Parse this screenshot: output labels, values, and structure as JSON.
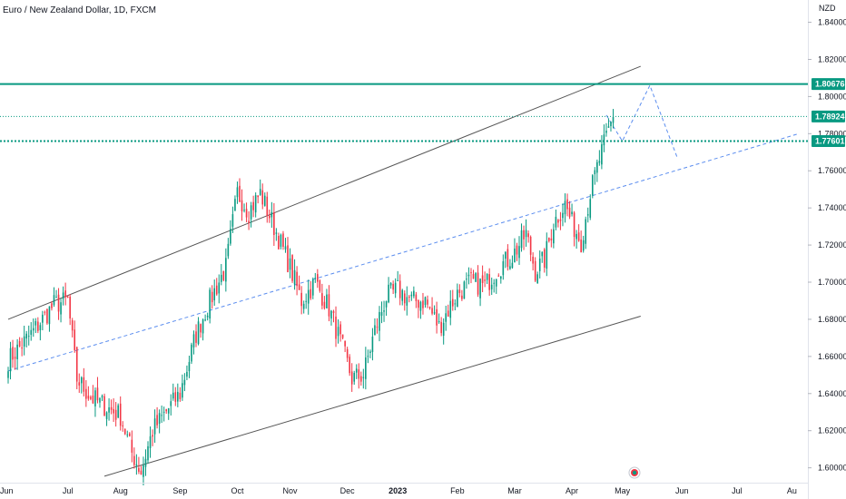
{
  "chart_data": {
    "type": "candlestick",
    "title": "Euro / New Zealand Dollar, 1D, FXCM",
    "currency": "NZD",
    "ylim": [
      1.592,
      1.852
    ],
    "y_ticks": [
      "1.84000",
      "1.82000",
      "1.80000",
      "1.78000",
      "1.76000",
      "1.74000",
      "1.72000",
      "1.70000",
      "1.68000",
      "1.66000",
      "1.64000",
      "1.62000",
      "1.60000"
    ],
    "x_ticks": [
      {
        "label": "Jun",
        "idx": 0
      },
      {
        "label": "Jul",
        "idx": 26
      },
      {
        "label": "Aug",
        "idx": 49
      },
      {
        "label": "Sep",
        "idx": 75
      },
      {
        "label": "Oct",
        "idx": 100
      },
      {
        "label": "Nov",
        "idx": 123
      },
      {
        "label": "Dec",
        "idx": 148
      },
      {
        "label": "2023",
        "idx": 170
      },
      {
        "label": "Feb",
        "idx": 196
      },
      {
        "label": "Mar",
        "idx": 221
      },
      {
        "label": "Apr",
        "idx": 246
      },
      {
        "label": "May",
        "idx": 268
      },
      {
        "label": "Jun",
        "idx": 294
      },
      {
        "label": "Jul",
        "idx": 318
      },
      {
        "label": "Au",
        "idx": 342
      }
    ],
    "x_last_idx": 345,
    "price_levels": [
      {
        "label": "1.80676",
        "value": 1.80676,
        "color": "#089981",
        "style": "solid"
      },
      {
        "label": "1.78924",
        "value": 1.78924,
        "color": "#089981",
        "style": "dotted-thin"
      },
      {
        "label": "1.77601",
        "value": 1.77601,
        "color": "#089981",
        "style": "dotted"
      }
    ],
    "channel_lines": [
      {
        "from": [
          0,
          1.68
        ],
        "to": [
          276,
          1.8163
        ]
      },
      {
        "from": [
          42,
          1.5955
        ],
        "to": [
          276,
          1.6817
        ]
      }
    ],
    "midline": {
      "from": [
        0,
        1.6522
      ],
      "to": [
        345,
        1.78
      ]
    },
    "projection": [
      [
        261,
        1.79
      ],
      [
        268,
        1.776
      ],
      [
        280,
        1.806
      ],
      [
        292,
        1.767
      ]
    ],
    "colors": {
      "up": "#089981",
      "down": "#f23645",
      "channel": "#555555",
      "dashed": "#5b8def"
    },
    "anchors": [
      [
        0,
        1.658
      ],
      [
        10,
        1.672
      ],
      [
        20,
        1.688
      ],
      [
        26,
        1.69
      ],
      [
        30,
        1.648
      ],
      [
        36,
        1.638
      ],
      [
        49,
        1.628
      ],
      [
        54,
        1.608
      ],
      [
        58,
        1.598
      ],
      [
        63,
        1.62
      ],
      [
        70,
        1.632
      ],
      [
        75,
        1.64
      ],
      [
        82,
        1.672
      ],
      [
        88,
        1.69
      ],
      [
        95,
        1.708
      ],
      [
        100,
        1.748
      ],
      [
        105,
        1.738
      ],
      [
        110,
        1.748
      ],
      [
        116,
        1.73
      ],
      [
        123,
        1.708
      ],
      [
        128,
        1.69
      ],
      [
        134,
        1.7
      ],
      [
        140,
        1.686
      ],
      [
        146,
        1.664
      ],
      [
        150,
        1.648
      ],
      [
        155,
        1.65
      ],
      [
        160,
        1.674
      ],
      [
        165,
        1.692
      ],
      [
        170,
        1.696
      ],
      [
        176,
        1.69
      ],
      [
        182,
        1.69
      ],
      [
        188,
        1.676
      ],
      [
        196,
        1.694
      ],
      [
        202,
        1.7
      ],
      [
        208,
        1.698
      ],
      [
        214,
        1.708
      ],
      [
        220,
        1.714
      ],
      [
        226,
        1.726
      ],
      [
        230,
        1.706
      ],
      [
        234,
        1.712
      ],
      [
        238,
        1.732
      ],
      [
        243,
        1.742
      ],
      [
        246,
        1.732
      ],
      [
        250,
        1.722
      ],
      [
        254,
        1.748
      ],
      [
        258,
        1.766
      ],
      [
        262,
        1.782
      ],
      [
        264,
        1.789
      ]
    ]
  }
}
